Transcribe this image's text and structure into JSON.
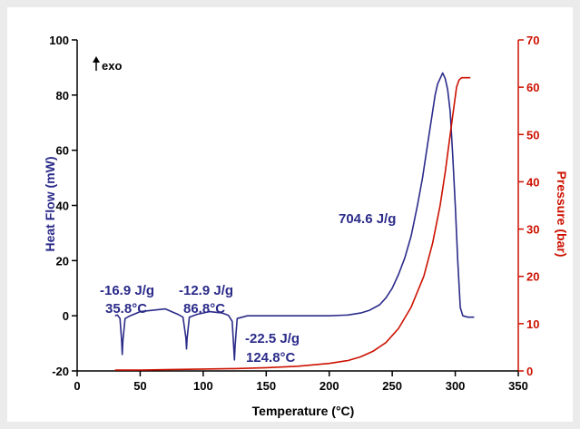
{
  "chart_data": {
    "type": "line",
    "xlabel": "Temperature (°C)",
    "ylabel_left": "Heat Flow (mW)",
    "ylabel_right": "Pressure (bar)",
    "xlim": [
      0,
      350
    ],
    "ylim_left": [
      -20,
      100
    ],
    "ylim_right": [
      0,
      70
    ],
    "x_ticks": [
      "0",
      "50",
      "100",
      "150",
      "200",
      "250",
      "300",
      "350"
    ],
    "y_left_ticks": [
      "-20",
      "0",
      "20",
      "40",
      "60",
      "80",
      "100"
    ],
    "y_right_ticks": [
      "0",
      "10",
      "20",
      "30",
      "40",
      "50",
      "60",
      "70"
    ],
    "exo_label": "exo",
    "grid": false,
    "series": [
      {
        "axis": "left",
        "color": "#2b2b8a",
        "x": [
          30,
          32,
          34,
          35.3,
          35.8,
          36.3,
          38,
          42,
          50,
          60,
          70,
          75,
          80,
          84,
          86.3,
          86.8,
          87.3,
          89,
          95,
          105,
          115,
          120,
          123,
          124.3,
          124.8,
          125.3,
          127,
          135,
          150,
          175,
          200,
          215,
          225,
          232,
          240,
          245,
          250,
          255,
          260,
          265,
          270,
          274,
          278,
          282,
          284,
          286,
          288,
          290,
          292,
          294,
          296,
          298,
          300,
          302,
          304,
          306,
          310,
          315
        ],
        "y": [
          0,
          0.3,
          -1,
          -9,
          -14,
          -9,
          -1,
          0,
          1.5,
          2,
          2.5,
          1.5,
          0.5,
          -0.5,
          -8,
          -12,
          -8,
          -0.5,
          0.5,
          1.5,
          1,
          0.2,
          -2,
          -12,
          -16,
          -11,
          -1,
          0,
          0,
          0,
          0,
          0.3,
          1,
          2,
          4,
          6.5,
          10,
          15,
          21,
          29,
          40,
          50,
          62,
          74,
          80,
          84,
          86,
          88,
          86,
          82,
          74,
          58,
          40,
          20,
          3,
          0,
          -0.5,
          -0.5
        ]
      },
      {
        "axis": "right",
        "color": "#cc1100",
        "x": [
          30,
          50,
          75,
          100,
          125,
          150,
          175,
          200,
          215,
          225,
          235,
          245,
          255,
          265,
          275,
          282,
          288,
          292,
          296,
          299,
          301,
          303,
          305,
          308,
          312
        ],
        "y": [
          0.2,
          0.2,
          0.3,
          0.4,
          0.5,
          0.7,
          1,
          1.6,
          2.2,
          3,
          4.2,
          6,
          9,
          13.5,
          20,
          27,
          35,
          42,
          50,
          56,
          60,
          61.5,
          62,
          62,
          62
        ]
      }
    ],
    "annotations": [
      {
        "lines": [
          "-16.9 J/g",
          "35.8°C"
        ]
      },
      {
        "lines": [
          "-12.9 J/g",
          "86.8°C"
        ]
      },
      {
        "lines": [
          "-22.5 J/g",
          "124.8°C"
        ]
      },
      {
        "lines": [
          "704.6 J/g"
        ]
      }
    ]
  }
}
